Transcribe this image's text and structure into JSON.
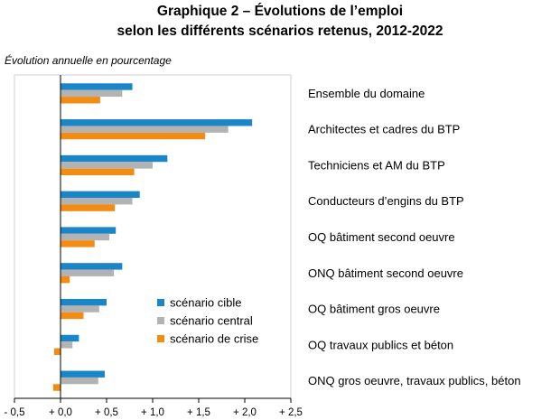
{
  "chart_data": {
    "type": "bar",
    "orientation": "horizontal",
    "title": "Graphique 2 – Évolutions de l’emploi",
    "subtitle": "selon les différents scénarios retenus, 2012-2022",
    "ylabel": "Évolution annuelle en pourcentage",
    "categories": [
      "Ensemble du domaine",
      "Architectes et cadres du BTP",
      "Techniciens et AM du BTP",
      "Conducteurs d’engins du BTP",
      "OQ  bâtiment second oeuvre",
      "ONQ bâtiment second oeuvre",
      "OQ  bâtiment gros oeuvre",
      "OQ  travaux publics et béton",
      "ONQ gros oeuvre, travaux publics, béton"
    ],
    "series": [
      {
        "name": "scénario cible",
        "color": "#1a86c8",
        "values": [
          0.78,
          2.08,
          1.16,
          0.86,
          0.6,
          0.67,
          0.5,
          0.2,
          0.48
        ]
      },
      {
        "name": "scénario central",
        "color": "#b3b3b3",
        "values": [
          0.67,
          1.82,
          1.0,
          0.78,
          0.53,
          0.58,
          0.42,
          0.13,
          0.41
        ]
      },
      {
        "name": "scénario de crise",
        "color": "#f28c12",
        "values": [
          0.43,
          1.57,
          0.8,
          0.59,
          0.37,
          0.1,
          0.25,
          -0.07,
          -0.08
        ]
      }
    ],
    "xlim": [
      -0.5,
      2.5
    ],
    "xticks": [
      -0.5,
      0,
      0.5,
      1,
      1.5,
      2,
      2.5
    ],
    "xtick_labels": [
      "- 0,5",
      "+ 0,0",
      "+ 0,5",
      "+ 1,0",
      "+ 1,5",
      "+ 2,0",
      "+ 2,5"
    ],
    "grid": false,
    "legend_position": "lower-right inside plot"
  }
}
